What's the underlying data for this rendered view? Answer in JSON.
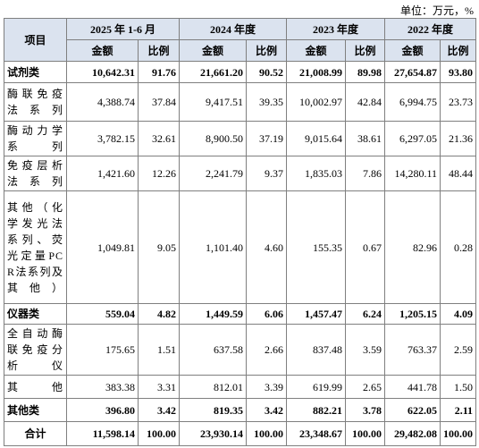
{
  "unit": "单位：万元，%",
  "table": {
    "header": {
      "item": "项目",
      "periods": [
        "2025 年 1-6 月",
        "2024 年度",
        "2023 年度",
        "2022 年度"
      ],
      "subheaders": [
        "金额",
        "比例",
        "金额",
        "比例",
        "金额",
        "比例",
        "金额",
        "比例"
      ]
    },
    "rows": [
      {
        "label": "试剂类",
        "bold": true,
        "cells": [
          "10,642.31",
          "91.76",
          "21,661.20",
          "90.52",
          "21,008.99",
          "89.98",
          "27,654.87",
          "93.80"
        ]
      },
      {
        "label": "酶联免疫法系列",
        "bold": false,
        "cells": [
          "4,388.74",
          "37.84",
          "9,417.51",
          "39.35",
          "10,002.97",
          "42.84",
          "6,994.75",
          "23.73"
        ]
      },
      {
        "label": "酶动力学系列",
        "bold": false,
        "cells": [
          "3,782.15",
          "32.61",
          "8,900.50",
          "37.19",
          "9,015.64",
          "38.61",
          "6,297.05",
          "21.36"
        ]
      },
      {
        "label": "免疫层析法系列",
        "bold": false,
        "cells": [
          "1,421.60",
          "12.26",
          "2,241.79",
          "9.37",
          "1,835.03",
          "7.86",
          "14,280.11",
          "48.44"
        ]
      },
      {
        "label": "其他（化学发光法系列、荧光定量PCR法系列及其他）",
        "bold": false,
        "cells": [
          "1,049.81",
          "9.05",
          "1,101.40",
          "4.60",
          "155.35",
          "0.67",
          "82.96",
          "0.28"
        ]
      },
      {
        "label": "仪器类",
        "bold": true,
        "cells": [
          "559.04",
          "4.82",
          "1,449.59",
          "6.06",
          "1,457.47",
          "6.24",
          "1,205.15",
          "4.09"
        ]
      },
      {
        "label": "全自动酶联免疫分析仪",
        "bold": false,
        "cells": [
          "175.65",
          "1.51",
          "637.58",
          "2.66",
          "837.48",
          "3.59",
          "763.37",
          "2.59"
        ]
      },
      {
        "label": "其他",
        "bold": false,
        "cells": [
          "383.38",
          "3.31",
          "812.01",
          "3.39",
          "619.99",
          "2.65",
          "441.78",
          "1.50"
        ]
      },
      {
        "label": "其他类",
        "bold": true,
        "cells": [
          "396.80",
          "3.42",
          "819.35",
          "3.42",
          "882.21",
          "3.78",
          "622.05",
          "2.11"
        ]
      },
      {
        "label": "合计",
        "bold": true,
        "cells": [
          "11,598.14",
          "100.00",
          "23,930.14",
          "100.00",
          "23,348.67",
          "100.00",
          "29,482.08",
          "100.00"
        ]
      }
    ]
  }
}
